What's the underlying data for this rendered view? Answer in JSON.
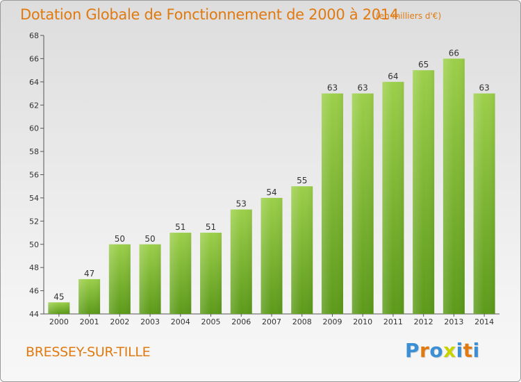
{
  "title": "Dotation Globale de Fonctionnement de 2000 à 2014",
  "subtitle": "(en milliers d'€)",
  "commune": "BRESSEY-SUR-TILLE",
  "brand": {
    "letters": [
      "P",
      "r",
      "o",
      "x",
      "i",
      "t",
      "i"
    ],
    "colors": [
      "#3a8fd6",
      "#e07a10",
      "#3a8fd6",
      "#c8d400",
      "#3a8fd6",
      "#e07a10",
      "#3a8fd6"
    ]
  },
  "colors": {
    "text": "#e07a10",
    "bar_light": "#9ccf4a",
    "bar_dark": "#5c9a1a"
  },
  "chart_data": {
    "type": "bar",
    "title": "Dotation Globale de Fonctionnement de 2000 à 2014",
    "subtitle": "(en milliers d'€)",
    "categories": [
      "2000",
      "2001",
      "2002",
      "2003",
      "2004",
      "2005",
      "2006",
      "2007",
      "2008",
      "2009",
      "2010",
      "2011",
      "2012",
      "2013",
      "2014"
    ],
    "values": [
      45,
      47,
      50,
      50,
      51,
      51,
      53,
      54,
      55,
      63,
      63,
      64,
      65,
      66,
      63
    ],
    "ylim": [
      44,
      68
    ],
    "yticks": [
      44,
      46,
      48,
      50,
      52,
      54,
      56,
      58,
      60,
      62,
      64,
      66,
      68
    ],
    "grid": false,
    "data_labels": true
  }
}
